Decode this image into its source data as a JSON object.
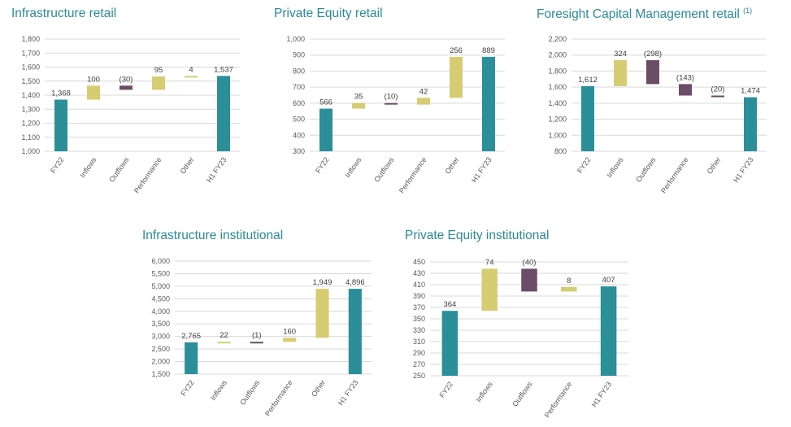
{
  "colors": {
    "total": "#2b8f9a",
    "increase": "#d6cc72",
    "decrease": "#6b4d68",
    "title": "#2a8a97",
    "grid": "#d9d9d9",
    "axis_text": "#595959",
    "label_text": "#404040"
  },
  "chart_data": [
    {
      "type": "bar",
      "subtype": "waterfall",
      "title": "Infrastructure retail",
      "footnote": "",
      "categories": [
        "FY22",
        "Inflows",
        "Outflows",
        "Performance",
        "Other",
        "H1 FY23"
      ],
      "values": [
        1368,
        100,
        -30,
        95,
        4,
        1537
      ],
      "kinds": [
        "total",
        "delta",
        "delta",
        "delta",
        "delta",
        "total"
      ],
      "data_labels": [
        "1,368",
        "100",
        "(30)",
        "95",
        "4",
        "1,537"
      ],
      "y_ticks": [
        "1,000",
        "1,100",
        "1,200",
        "1,300",
        "1,400",
        "1,500",
        "1,600",
        "1,700",
        "1,800"
      ],
      "ylim": [
        1000,
        1800
      ],
      "ystep": 100,
      "grid": true
    },
    {
      "type": "bar",
      "subtype": "waterfall",
      "title": "Private Equity retail",
      "footnote": "",
      "categories": [
        "FY22",
        "Inflows",
        "Outflows",
        "Performance",
        "Other",
        "H1 FY23"
      ],
      "values": [
        566,
        35,
        -10,
        42,
        256,
        889
      ],
      "kinds": [
        "total",
        "delta",
        "delta",
        "delta",
        "delta",
        "total"
      ],
      "data_labels": [
        "566",
        "35",
        "(10)",
        "42",
        "256",
        "889"
      ],
      "y_ticks": [
        "300",
        "400",
        "500",
        "600",
        "700",
        "800",
        "900",
        "1,000"
      ],
      "ylim": [
        300,
        1000
      ],
      "ystep": 100,
      "grid": true
    },
    {
      "type": "bar",
      "subtype": "waterfall",
      "title": "Foresight Capital Management retail",
      "footnote": "(1)",
      "categories": [
        "FY22",
        "Inflows",
        "Outflows",
        "Performance",
        "Other",
        "H1 FY23"
      ],
      "values": [
        1612,
        324,
        -298,
        -143,
        -20,
        1474
      ],
      "kinds": [
        "total",
        "delta",
        "delta",
        "delta",
        "delta",
        "total"
      ],
      "data_labels": [
        "1,612",
        "324",
        "(298)",
        "(143)",
        "(20)",
        "1,474"
      ],
      "y_ticks": [
        "800",
        "1,000",
        "1,200",
        "1,400",
        "1,600",
        "1,800",
        "2,000",
        "2,200"
      ],
      "ylim": [
        800,
        2200
      ],
      "ystep": 200,
      "grid": true
    },
    {
      "type": "bar",
      "subtype": "waterfall",
      "title": "Infrastructure institutional",
      "footnote": "",
      "categories": [
        "FY22",
        "Inflows",
        "Outflows",
        "Performance",
        "Other",
        "H1 FY23"
      ],
      "values": [
        2765,
        22,
        -1,
        160,
        1949,
        4896
      ],
      "kinds": [
        "total",
        "delta",
        "delta",
        "delta",
        "delta",
        "total"
      ],
      "data_labels": [
        "2,765",
        "22",
        "(1)",
        "160",
        "1,949",
        "4,896"
      ],
      "y_ticks": [
        "1,500",
        "2,000",
        "2,500",
        "3,000",
        "3,500",
        "4,000",
        "4,500",
        "5,000",
        "5,500",
        "6,000"
      ],
      "ylim": [
        1500,
        6000
      ],
      "ystep": 500,
      "grid": true
    },
    {
      "type": "bar",
      "subtype": "waterfall",
      "title": "Private Equity institutional",
      "footnote": "",
      "categories": [
        "FY22",
        "Inflows",
        "Outflows",
        "Performance",
        "H1 FY23"
      ],
      "values": [
        364,
        74,
        -40,
        8,
        407
      ],
      "kinds": [
        "total",
        "delta",
        "delta",
        "delta",
        "total"
      ],
      "data_labels": [
        "364",
        "74",
        "(40)",
        "8",
        "407"
      ],
      "y_ticks": [
        "250",
        "270",
        "290",
        "310",
        "330",
        "350",
        "370",
        "390",
        "410",
        "430",
        "450"
      ],
      "ylim": [
        250,
        450
      ],
      "ystep": 20,
      "grid": true
    }
  ]
}
